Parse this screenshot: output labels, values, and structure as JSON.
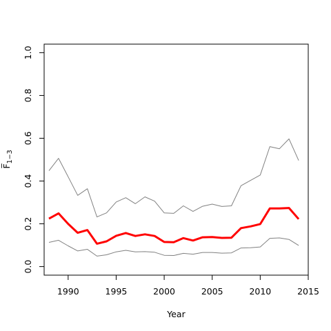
{
  "chart_data": {
    "type": "line",
    "title": "",
    "xlabel": "Year",
    "ylabel": "F̅",
    "ylabel_sub": "1−3",
    "xlim": [
      1987.5,
      2015
    ],
    "ylim": [
      -0.04,
      1.04
    ],
    "xticks": [
      1990,
      1995,
      2000,
      2005,
      2010,
      2015
    ],
    "yticks": [
      0.0,
      0.2,
      0.4,
      0.6,
      0.8,
      1.0
    ],
    "ytick_labels": [
      "0.0",
      "0.2",
      "0.4",
      "0.6",
      "0.8",
      "1.0"
    ],
    "grid": false,
    "legend": "none",
    "x": [
      1988,
      1989,
      1990,
      1991,
      1992,
      1993,
      1994,
      1995,
      1996,
      1997,
      1998,
      1999,
      2000,
      2001,
      2002,
      2003,
      2004,
      2005,
      2006,
      2007,
      2008,
      2009,
      2010,
      2011,
      2012,
      2013,
      2014
    ],
    "series": [
      {
        "role": "estimate",
        "color": "#ff0000",
        "width": "thick",
        "values": [
          0.224,
          0.249,
          0.2,
          0.158,
          0.171,
          0.107,
          0.118,
          0.144,
          0.157,
          0.143,
          0.151,
          0.143,
          0.115,
          0.114,
          0.133,
          0.122,
          0.137,
          0.138,
          0.134,
          0.135,
          0.18,
          0.188,
          0.199,
          0.272,
          0.272,
          0.274,
          0.222
        ]
      },
      {
        "role": "upper-bound",
        "color": "#808080",
        "width": "thin",
        "values": [
          0.448,
          0.506,
          0.42,
          0.333,
          0.364,
          0.232,
          0.251,
          0.302,
          0.322,
          0.294,
          0.326,
          0.306,
          0.251,
          0.249,
          0.284,
          0.258,
          0.282,
          0.292,
          0.281,
          0.284,
          0.378,
          0.403,
          0.428,
          0.561,
          0.551,
          0.597,
          0.496
        ]
      },
      {
        "role": "lower-bound",
        "color": "#808080",
        "width": "thin",
        "values": [
          0.113,
          0.123,
          0.097,
          0.073,
          0.081,
          0.049,
          0.055,
          0.069,
          0.076,
          0.069,
          0.07,
          0.067,
          0.053,
          0.052,
          0.062,
          0.058,
          0.066,
          0.066,
          0.063,
          0.064,
          0.087,
          0.088,
          0.092,
          0.132,
          0.134,
          0.127,
          0.099
        ]
      }
    ]
  }
}
